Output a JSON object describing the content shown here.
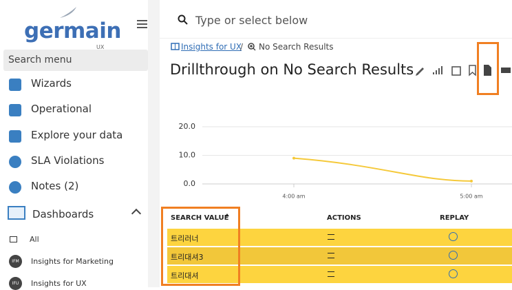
{
  "sidebar": {
    "logo": "germain",
    "logo_sub": "UX",
    "search_placeholder": "Search menu",
    "menu": [
      {
        "label": "Wizards"
      },
      {
        "label": "Operational"
      },
      {
        "label": "Explore your data"
      },
      {
        "label": "SLA Violations"
      },
      {
        "label": "Notes (2)"
      }
    ],
    "dashboards": {
      "label": "Dashboards",
      "items": [
        {
          "label": "All"
        },
        {
          "badge": "IFM",
          "label": "Insights for Marketing"
        },
        {
          "badge": "IFU",
          "label": "Insights for UX"
        }
      ]
    }
  },
  "header": {
    "search_placeholder": "Type or select below"
  },
  "breadcrumb": {
    "link": "Insights for UX",
    "separator": "/",
    "current": "No Search Results"
  },
  "title": "Drillthrough on No Search Results",
  "chart_data": {
    "type": "line",
    "categories": [
      "4:00 am",
      "5:00 am"
    ],
    "values": [
      9,
      1
    ],
    "color": "#f5c93a",
    "ylim": [
      0,
      20
    ],
    "yticks": [
      {
        "value": 0,
        "label": "0.0"
      },
      {
        "value": 10,
        "label": "10.0"
      },
      {
        "value": 20,
        "label": "20.0"
      }
    ],
    "grid": true
  },
  "table": {
    "columns": [
      "SEARCH VALUE",
      "ACTIONS",
      "REPLAY"
    ],
    "rows": [
      [
        "트리러너"
      ],
      [
        "트리대셔3"
      ],
      [
        "트리대셔"
      ]
    ]
  }
}
